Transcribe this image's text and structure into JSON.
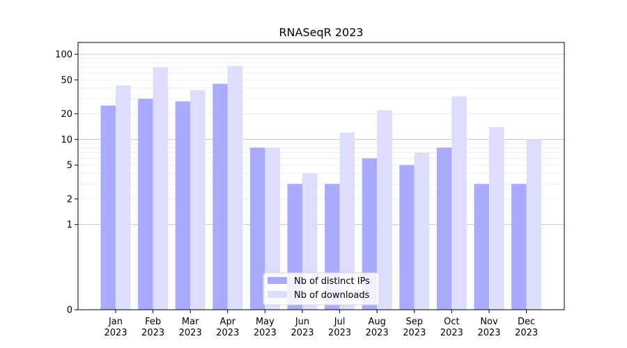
{
  "chart_data": {
    "type": "bar",
    "title": "RNASeqR 2023",
    "xlabel": "",
    "ylabel": "",
    "y_scale": "symlog",
    "ylim": [
      0,
      120
    ],
    "yticks": [
      0,
      1,
      2,
      5,
      10,
      20,
      50,
      100
    ],
    "ytick_labels": [
      "0",
      "1",
      "2",
      "5",
      "10",
      "20",
      "50",
      "100"
    ],
    "grid": true,
    "legend_position": "bottom-center",
    "categories": [
      [
        "Jan",
        "2023"
      ],
      [
        "Feb",
        "2023"
      ],
      [
        "Mar",
        "2023"
      ],
      [
        "Apr",
        "2023"
      ],
      [
        "May",
        "2023"
      ],
      [
        "Jun",
        "2023"
      ],
      [
        "Jul",
        "2023"
      ],
      [
        "Aug",
        "2023"
      ],
      [
        "Sep",
        "2023"
      ],
      [
        "Oct",
        "2023"
      ],
      [
        "Nov",
        "2023"
      ],
      [
        "Dec",
        "2023"
      ]
    ],
    "series": [
      {
        "name": "Nb of distinct IPs",
        "color": "#aaaaff",
        "values": [
          25,
          30,
          28,
          45,
          8,
          3,
          3,
          6,
          5,
          8,
          3,
          3
        ]
      },
      {
        "name": "Nb of downloads",
        "color": "#ddddff",
        "values": [
          43,
          71,
          38,
          73,
          8,
          4,
          12,
          22,
          7,
          32,
          14,
          10
        ]
      }
    ]
  }
}
